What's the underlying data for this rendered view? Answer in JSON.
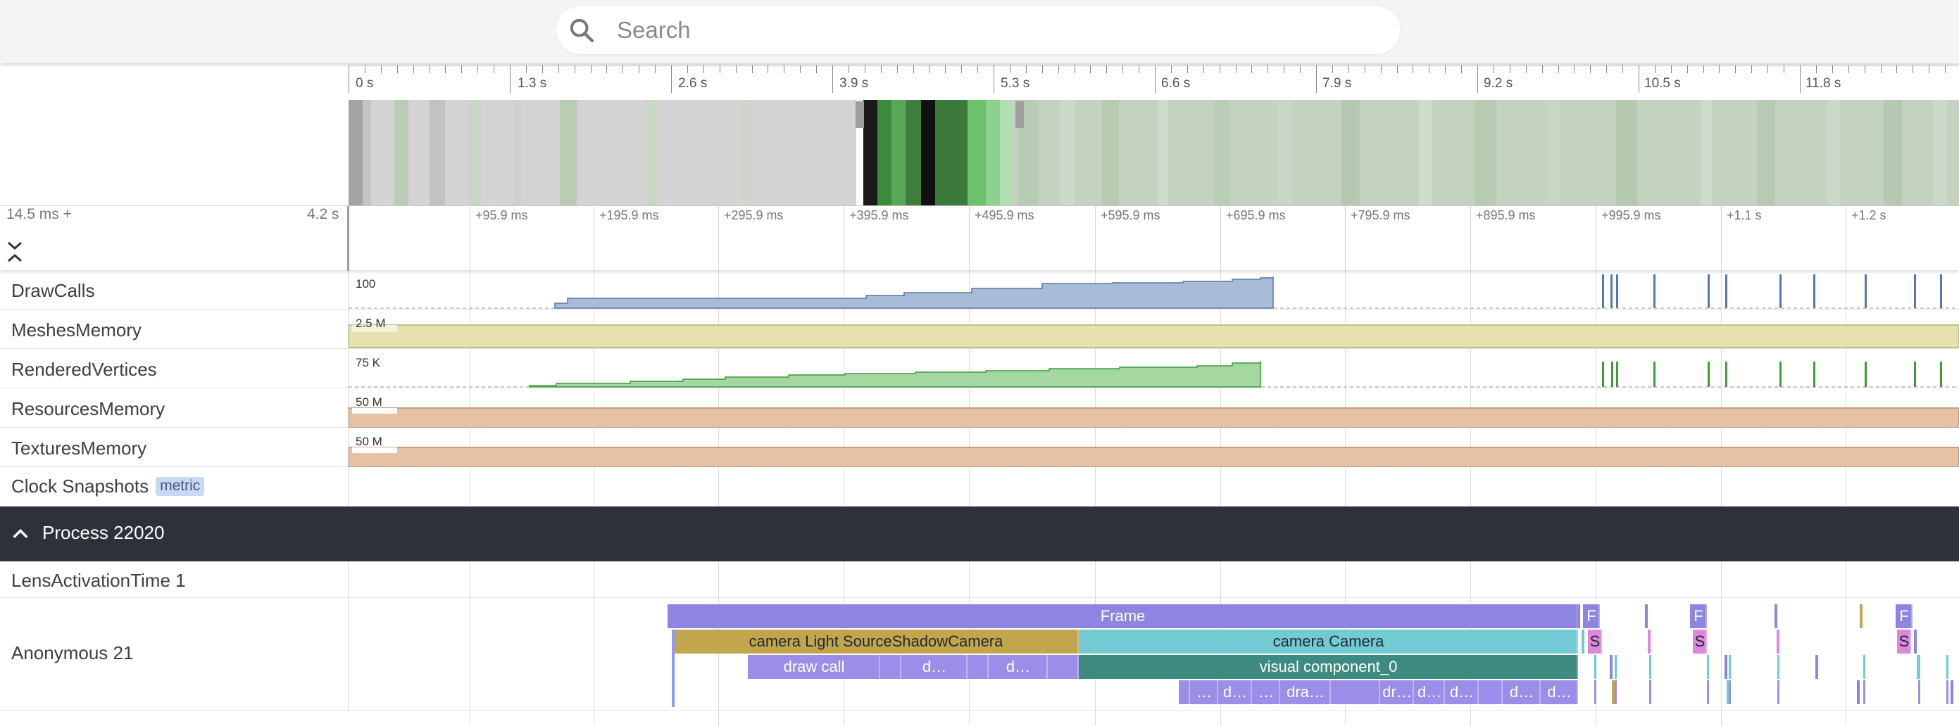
{
  "search": {
    "placeholder": "Search"
  },
  "overview": {
    "tick_labels": [
      "0 s",
      "1.3 s",
      "2.6 s",
      "3.9 s",
      "5.3 s",
      "6.6 s",
      "7.9 s",
      "9.2 s",
      "10.5 s",
      "11.8 s"
    ]
  },
  "detail": {
    "offset_label": "14.5 ms +",
    "span_label": "4.2 s",
    "tick_labels": [
      "+95.9 ms",
      "+195.9 ms",
      "+295.9 ms",
      "+395.9 ms",
      "+495.9 ms",
      "+595.9 ms",
      "+695.9 ms",
      "+795.9 ms",
      "+895.9 ms",
      "+995.9 ms",
      "+1.1 s",
      "+1.2 s"
    ]
  },
  "tracks": {
    "draw_calls": {
      "title": "DrawCalls",
      "scale": "100"
    },
    "meshes_memory": {
      "title": "MeshesMemory",
      "scale": "2.5 M"
    },
    "rendered_vertices": {
      "title": "RenderedVertices",
      "scale": "75 K"
    },
    "resources_memory": {
      "title": "ResourcesMemory",
      "scale": "50 M"
    },
    "textures_memory": {
      "title": "TexturesMemory",
      "scale": "50 M"
    },
    "clock_snapshots": {
      "title": "Clock Snapshots",
      "chip": "metric"
    },
    "process": {
      "title": "Process 22020"
    },
    "lens_activation": {
      "title": "LensActivationTime 1"
    },
    "anonymous": {
      "title": "Anonymous 21"
    }
  },
  "colors": {
    "draw_calls": "#a8bcd8",
    "meshes_memory": "#e5e2ae",
    "rendered_vertices": "#a5d7a0",
    "resources_memory": "#e6c1a3",
    "textures_memory": "#e6c1a3",
    "process_header": "#2c313a",
    "frame_slice": "#8d85e0",
    "shadow_camera_slice": "#c3a54e",
    "camera_slice": "#72cbd3",
    "visual_component_slice": "#3d8a80",
    "draw_call_slice": "#9b8ee8",
    "small_s_slice": "#dc86dc"
  },
  "slices": {
    "frame": "Frame",
    "shadow_camera": "camera Light SourceShadowCamera",
    "camera": "camera Camera",
    "draw_call": "draw call",
    "visual_component": "visual component_0",
    "d_ellipsis": "d…",
    "ellipsis": "…",
    "dra_ellipsis": "dra…",
    "dr_ellipsis": "dr…",
    "f_label": "F",
    "s_label": "S"
  }
}
